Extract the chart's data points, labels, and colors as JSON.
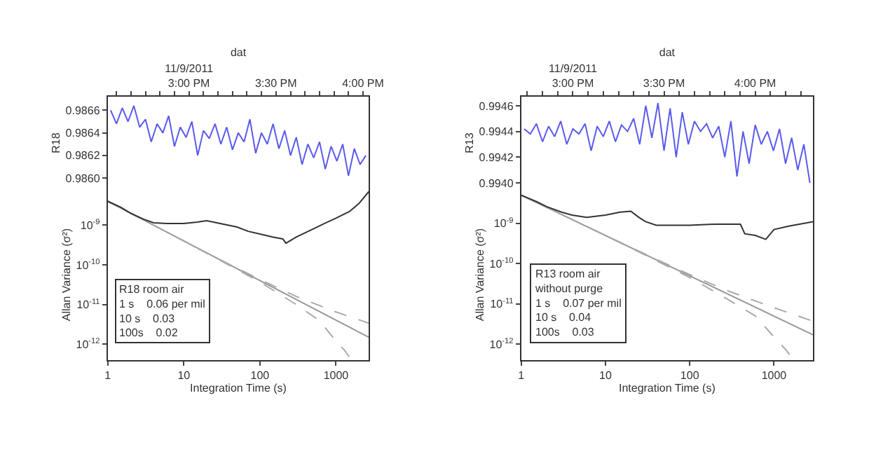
{
  "chart_data": [
    {
      "type": "line",
      "xlabel": "dat",
      "ylabel": "R18",
      "xlim": [
        "2011-11-09T14:32",
        "2011-11-09T16:02"
      ],
      "xticks": [
        {
          "value": "2011-11-09T14:35",
          "label": null
        },
        {
          "value": "2011-11-09T14:40",
          "label": null
        },
        {
          "value": "2011-11-09T14:45",
          "label": null
        },
        {
          "value": "2011-11-09T14:50",
          "label": null
        },
        {
          "value": "2011-11-09T14:55",
          "label": null
        },
        {
          "value": "2011-11-09T15:00",
          "label": "11/9/2011\n3:00 PM"
        },
        {
          "value": "2011-11-09T15:05",
          "label": null
        },
        {
          "value": "2011-11-09T15:10",
          "label": null
        },
        {
          "value": "2011-11-09T15:15",
          "label": null
        },
        {
          "value": "2011-11-09T15:20",
          "label": null
        },
        {
          "value": "2011-11-09T15:25",
          "label": null
        },
        {
          "value": "2011-11-09T15:30",
          "label": "3:30 PM"
        },
        {
          "value": "2011-11-09T15:35",
          "label": null
        },
        {
          "value": "2011-11-09T15:40",
          "label": null
        },
        {
          "value": "2011-11-09T15:45",
          "label": null
        },
        {
          "value": "2011-11-09T15:50",
          "label": null
        },
        {
          "value": "2011-11-09T15:55",
          "label": null
        },
        {
          "value": "2011-11-09T16:00",
          "label": "4:00 PM"
        }
      ],
      "ylim": [
        0.9859,
        0.98672
      ],
      "yticks": [
        {
          "value": 0.986,
          "label": "0.9860"
        },
        0.9862,
        0.9864,
        0.9866
      ],
      "series": [
        {
          "color": "#5a5af0",
          "x": [
            "2011-11-09T14:33",
            "2011-11-09T14:35",
            "2011-11-09T14:37",
            "2011-11-09T14:39",
            "2011-11-09T14:41",
            "2011-11-09T14:43",
            "2011-11-09T14:45",
            "2011-11-09T14:47",
            "2011-11-09T14:49",
            "2011-11-09T14:51",
            "2011-11-09T14:53",
            "2011-11-09T14:55",
            "2011-11-09T14:57",
            "2011-11-09T14:59",
            "2011-11-09T15:01",
            "2011-11-09T15:03",
            "2011-11-09T15:05",
            "2011-11-09T15:07",
            "2011-11-09T15:09",
            "2011-11-09T15:11",
            "2011-11-09T15:13",
            "2011-11-09T15:15",
            "2011-11-09T15:17",
            "2011-11-09T15:19",
            "2011-11-09T15:21",
            "2011-11-09T15:23",
            "2011-11-09T15:25",
            "2011-11-09T15:27",
            "2011-11-09T15:29",
            "2011-11-09T15:31",
            "2011-11-09T15:33",
            "2011-11-09T15:35",
            "2011-11-09T15:37",
            "2011-11-09T15:39",
            "2011-11-09T15:41",
            "2011-11-09T15:43",
            "2011-11-09T15:45",
            "2011-11-09T15:47",
            "2011-11-09T15:49",
            "2011-11-09T15:51",
            "2011-11-09T15:53",
            "2011-11-09T15:55",
            "2011-11-09T15:57",
            "2011-11-09T15:59",
            "2011-11-09T16:01"
          ],
          "values": [
            0.9866,
            0.98648,
            0.98662,
            0.9865,
            0.98664,
            0.98645,
            0.98652,
            0.98632,
            0.98648,
            0.9864,
            0.98655,
            0.98628,
            0.98645,
            0.98636,
            0.9865,
            0.9862,
            0.98642,
            0.98635,
            0.98648,
            0.9863,
            0.98645,
            0.98625,
            0.9864,
            0.98632,
            0.98652,
            0.98622,
            0.9864,
            0.9863,
            0.98648,
            0.98626,
            0.98642,
            0.9862,
            0.98636,
            0.98612,
            0.9863,
            0.98618,
            0.98632,
            0.98608,
            0.98628,
            0.98615,
            0.9863,
            0.98602,
            0.98626,
            0.98612,
            0.9862
          ]
        }
      ]
    },
    {
      "type": "line",
      "xlabel": "Integration Time (s)",
      "ylabel": "Allan Variance (σ²)",
      "log": "xy",
      "xlim": [
        1,
        2700
      ],
      "xticks": [
        1,
        10,
        100,
        1000
      ],
      "ylim": [
        4e-13,
        8e-09
      ],
      "yticks": [
        {
          "value": 1e-12,
          "label": "10$^{-12}$"
        },
        {
          "value": 1e-11,
          "label": "10$^{-11}$"
        },
        {
          "value": 1e-10,
          "label": "10$^{-10}$"
        },
        {
          "value": 1e-09,
          "label": "10$^{-9}$"
        }
      ],
      "annotations": [
        "R18 room air",
        "1 s    0.06 per mil",
        "10 s    0.03",
        "100s    0.02"
      ],
      "series": [
        {
          "color": "#999999",
          "line_style": "solid",
          "x": [
            1,
            2700
          ],
          "values": [
            4e-09,
            1.5e-12
          ]
        },
        {
          "color": "#aaaaaa",
          "line_style": "dashed",
          "x": [
            1,
            10,
            30,
            100,
            300,
            1000,
            2700
          ],
          "values": [
            4e-09,
            4e-10,
            1.35e-10,
            4.3e-11,
            1.6e-11,
            6.5e-12,
            3.4e-12
          ]
        },
        {
          "color": "#aaaaaa",
          "line_style": "dashed",
          "x": [
            1,
            10,
            30,
            100,
            300,
            600,
            1000,
            1300,
            1600
          ],
          "values": [
            4e-09,
            4e-10,
            1.3e-10,
            3.7e-11,
            1e-11,
            4e-12,
            1.2e-12,
            7e-13,
            4e-13
          ]
        },
        {
          "color": "#333333",
          "line_style": "solid",
          "x": [
            1,
            1.5,
            2,
            3,
            4,
            6,
            10,
            15,
            20,
            30,
            50,
            70,
            100,
            150,
            200,
            220,
            300,
            500,
            700,
            1000,
            1500,
            2000,
            2700
          ],
          "values": [
            4e-09,
            2.8e-09,
            2e-09,
            1.4e-09,
            1.15e-09,
            1.1e-09,
            1.1e-09,
            1.2e-09,
            1.3e-09,
            1.1e-09,
            9e-10,
            7e-10,
            6e-10,
            5e-10,
            4.5e-10,
            3.5e-10,
            5e-10,
            8e-10,
            1.1e-09,
            1.5e-09,
            2.2e-09,
            3.5e-09,
            7e-09
          ]
        }
      ]
    },
    {
      "type": "line",
      "xlabel": "dat",
      "ylabel": "R13",
      "xlim": [
        "2011-11-09T14:43",
        "2011-11-09T16:19"
      ],
      "xticks": [
        {
          "value": "2011-11-09T14:45",
          "label": null
        },
        {
          "value": "2011-11-09T14:50",
          "label": null
        },
        {
          "value": "2011-11-09T14:55",
          "label": null
        },
        {
          "value": "2011-11-09T15:00",
          "label": "11/9/2011\n3:00 PM"
        },
        {
          "value": "2011-11-09T15:05",
          "label": null
        },
        {
          "value": "2011-11-09T15:10",
          "label": null
        },
        {
          "value": "2011-11-09T15:15",
          "label": null
        },
        {
          "value": "2011-11-09T15:20",
          "label": null
        },
        {
          "value": "2011-11-09T15:25",
          "label": null
        },
        {
          "value": "2011-11-09T15:30",
          "label": "3:30 PM"
        },
        {
          "value": "2011-11-09T15:35",
          "label": null
        },
        {
          "value": "2011-11-09T15:40",
          "label": null
        },
        {
          "value": "2011-11-09T15:45",
          "label": null
        },
        {
          "value": "2011-11-09T15:50",
          "label": null
        },
        {
          "value": "2011-11-09T15:55",
          "label": null
        },
        {
          "value": "2011-11-09T16:00",
          "label": "4:00 PM"
        },
        {
          "value": "2011-11-09T16:05",
          "label": null
        },
        {
          "value": "2011-11-09T16:10",
          "label": null
        },
        {
          "value": "2011-11-09T16:15",
          "label": null
        }
      ],
      "ylim": [
        0.99395,
        0.99467
      ],
      "yticks": [
        {
          "value": 0.994,
          "label": "0.9940"
        },
        0.9942,
        0.9944,
        0.9946
      ],
      "series": [
        {
          "color": "#5a5af0",
          "x": [
            "2011-11-09T14:44",
            "2011-11-09T14:46",
            "2011-11-09T14:48",
            "2011-11-09T14:50",
            "2011-11-09T14:52",
            "2011-11-09T14:54",
            "2011-11-09T14:56",
            "2011-11-09T14:58",
            "2011-11-09T15:00",
            "2011-11-09T15:02",
            "2011-11-09T15:04",
            "2011-11-09T15:06",
            "2011-11-09T15:08",
            "2011-11-09T15:10",
            "2011-11-09T15:12",
            "2011-11-09T15:14",
            "2011-11-09T15:16",
            "2011-11-09T15:18",
            "2011-11-09T15:20",
            "2011-11-09T15:22",
            "2011-11-09T15:24",
            "2011-11-09T15:26",
            "2011-11-09T15:28",
            "2011-11-09T15:30",
            "2011-11-09T15:32",
            "2011-11-09T15:34",
            "2011-11-09T15:36",
            "2011-11-09T15:38",
            "2011-11-09T15:40",
            "2011-11-09T15:42",
            "2011-11-09T15:44",
            "2011-11-09T15:46",
            "2011-11-09T15:48",
            "2011-11-09T15:50",
            "2011-11-09T15:52",
            "2011-11-09T15:54",
            "2011-11-09T15:56",
            "2011-11-09T15:58",
            "2011-11-09T16:00",
            "2011-11-09T16:02",
            "2011-11-09T16:04",
            "2011-11-09T16:06",
            "2011-11-09T16:08",
            "2011-11-09T16:10",
            "2011-11-09T16:12",
            "2011-11-09T16:14",
            "2011-11-09T16:16",
            "2011-11-09T16:18"
          ],
          "values": [
            0.99442,
            0.99438,
            0.99446,
            0.99432,
            0.99444,
            0.99436,
            0.99448,
            0.9943,
            0.99442,
            0.99438,
            0.99446,
            0.99425,
            0.99444,
            0.99436,
            0.99448,
            0.99432,
            0.99445,
            0.9944,
            0.9945,
            0.9943,
            0.9946,
            0.99435,
            0.99462,
            0.99425,
            0.99458,
            0.9942,
            0.99455,
            0.9943,
            0.99448,
            0.9944,
            0.99446,
            0.99435,
            0.99444,
            0.9942,
            0.99448,
            0.99405,
            0.9944,
            0.99415,
            0.99445,
            0.9943,
            0.9944,
            0.99425,
            0.99442,
            0.99415,
            0.99435,
            0.9941,
            0.9943,
            0.994
          ]
        }
      ]
    },
    {
      "type": "line",
      "xlabel": "Integration Time (s)",
      "ylabel": "Allan Variance (σ²)",
      "log": "xy",
      "xlim": [
        1,
        2900
      ],
      "xticks": [
        1,
        10,
        100,
        1000
      ],
      "ylim": [
        4e-13,
        7e-09
      ],
      "yticks": [
        {
          "value": 1e-12,
          "label": "10$^{-12}$"
        },
        {
          "value": 1e-11,
          "label": "10$^{-11}$"
        },
        {
          "value": 1e-10,
          "label": "10$^{-10}$"
        },
        {
          "value": 1e-09,
          "label": "10$^{-9}$"
        }
      ],
      "annotations": [
        "R13 room air",
        "without purge",
        "1 s    0.07 per mil",
        "10 s    0.04",
        "100s    0.03"
      ],
      "series": [
        {
          "color": "#999999",
          "line_style": "solid",
          "x": [
            1,
            2900
          ],
          "values": [
            5e-09,
            1.7e-12
          ]
        },
        {
          "color": "#aaaaaa",
          "line_style": "dashed",
          "x": [
            1,
            10,
            30,
            100,
            300,
            1000,
            2900
          ],
          "values": [
            5e-09,
            5e-10,
            1.7e-10,
            5.3e-11,
            2e-11,
            8e-12,
            3.7e-12
          ]
        },
        {
          "color": "#aaaaaa",
          "line_style": "dashed",
          "x": [
            1,
            10,
            30,
            100,
            300,
            600,
            1000,
            1400,
            1700
          ],
          "values": [
            5e-09,
            5e-10,
            1.6e-10,
            4.5e-11,
            1.2e-11,
            5e-12,
            1.5e-12,
            7e-13,
            4e-13
          ]
        },
        {
          "color": "#333333",
          "line_style": "solid",
          "x": [
            1,
            1.5,
            2,
            3,
            4,
            6,
            10,
            15,
            20,
            25,
            30,
            40,
            60,
            100,
            200,
            400,
            450,
            600,
            800,
            1000,
            1500,
            2900
          ],
          "values": [
            5e-09,
            3.5e-09,
            2.6e-09,
            1.9e-09,
            1.6e-09,
            1.4e-09,
            1.6e-09,
            1.9e-09,
            2e-09,
            1.4e-09,
            1.1e-09,
            9e-10,
            9e-10,
            9e-10,
            9.5e-10,
            9.5e-10,
            5.5e-10,
            5e-10,
            4e-10,
            7e-10,
            8.5e-10,
            1.1e-09
          ]
        }
      ]
    }
  ]
}
